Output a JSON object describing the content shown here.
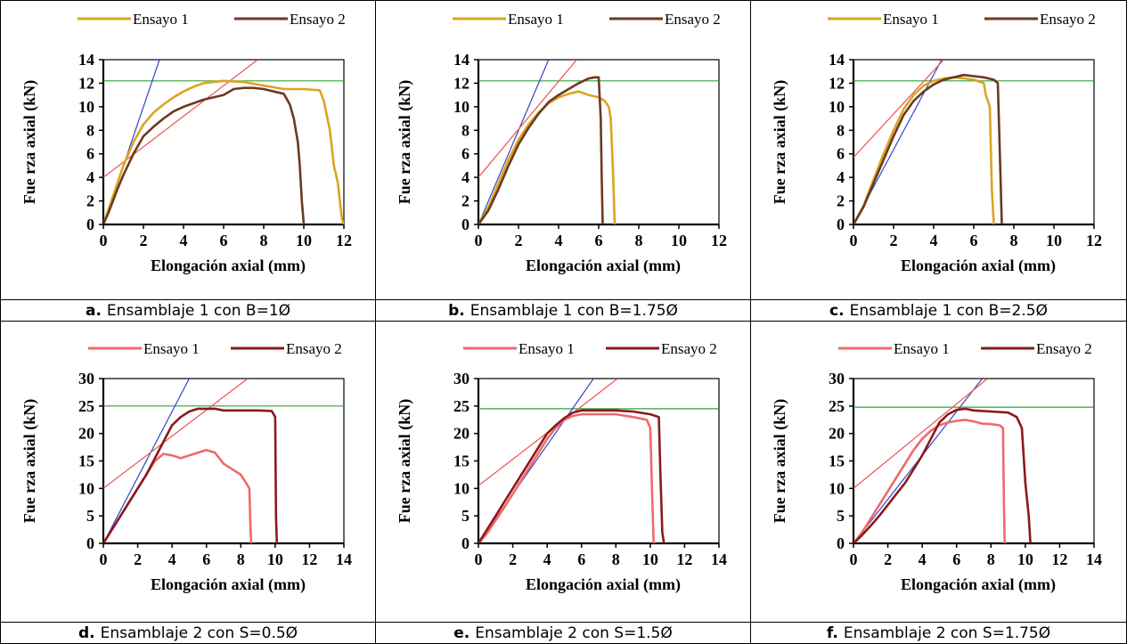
{
  "colors": {
    "ensayo1_row1": "#DAA520",
    "ensayo2_row1": "#6B3A1F",
    "ensayo1_row2": "#F06A6A",
    "ensayo2_row2": "#8B1A1A",
    "tangent": "#3344CC",
    "secant": "#F05050",
    "yield": "#33A033"
  },
  "panels": [
    {
      "caption_letter": "a.",
      "caption_text": "Ensamblaje 1 con B=1Ø",
      "chart_data": {
        "type": "line",
        "xlabel": "Elongación axial (mm)",
        "ylabel": "Fue rza axial (kN)",
        "xlim": [
          0,
          12
        ],
        "ylim": [
          0,
          14
        ],
        "xticks": [
          "0",
          "2",
          "4",
          "6",
          "8",
          "10",
          "12"
        ],
        "yticks": [
          "0",
          "2",
          "4",
          "6",
          "8",
          "10",
          "12",
          "14"
        ],
        "legend": "top",
        "series": [
          {
            "name": "Ensayo 1",
            "x": [
              0,
              0.3,
              0.7,
              1.0,
              1.5,
              2.0,
              2.5,
              3.0,
              3.5,
              4.0,
              4.5,
              5.0,
              5.5,
              6.0,
              7.0,
              8.0,
              9.0,
              10.0,
              10.8,
              11.0,
              11.3,
              11.5,
              11.7,
              11.8,
              11.9,
              12.0
            ],
            "y": [
              0,
              1.5,
              3.5,
              5,
              7,
              8.5,
              9.5,
              10.2,
              10.8,
              11.3,
              11.7,
              12.0,
              12.1,
              12.2,
              12.1,
              11.8,
              11.5,
              11.5,
              11.4,
              10.5,
              8,
              5,
              3.5,
              2,
              0.5,
              0
            ]
          },
          {
            "name": "Ensayo 2",
            "x": [
              0,
              0.3,
              0.7,
              1.0,
              1.5,
              2.0,
              2.5,
              3.0,
              3.5,
              4.0,
              5.0,
              6.0,
              6.5,
              7.0,
              7.5,
              8.0,
              8.5,
              9.0,
              9.3,
              9.5,
              9.7,
              9.8,
              9.9,
              10.0
            ],
            "y": [
              0,
              1.2,
              3,
              4.2,
              6,
              7.5,
              8.3,
              9.0,
              9.6,
              10.0,
              10.6,
              11.0,
              11.5,
              11.6,
              11.6,
              11.5,
              11.3,
              11.1,
              10.2,
              9,
              7,
              5,
              2,
              0
            ]
          },
          {
            "name": "tangent",
            "x": [
              0,
              2.8
            ],
            "y": [
              0,
              14
            ]
          },
          {
            "name": "secant",
            "x": [
              0,
              7.7
            ],
            "y": [
              4,
              14
            ]
          },
          {
            "name": "yield",
            "x": [
              0,
              12
            ],
            "y": [
              12.2,
              12.2
            ]
          }
        ]
      }
    },
    {
      "caption_letter": "b.",
      "caption_text": "Ensamblaje 1 con B=1.75Ø",
      "chart_data": {
        "type": "line",
        "xlabel": "Elongación axial (mm)",
        "ylabel": "Fue rza axial (kN)",
        "xlim": [
          0,
          12
        ],
        "ylim": [
          0,
          14
        ],
        "xticks": [
          "0",
          "2",
          "4",
          "6",
          "8",
          "10",
          "12"
        ],
        "yticks": [
          "0",
          "2",
          "4",
          "6",
          "8",
          "10",
          "12",
          "14"
        ],
        "legend": "top",
        "series": [
          {
            "name": "Ensayo 1",
            "x": [
              0,
              0.5,
              1.0,
              1.5,
              2.0,
              2.5,
              3.0,
              3.5,
              4.0,
              4.5,
              5.0,
              5.5,
              6.0,
              6.3,
              6.5,
              6.6,
              6.7,
              6.8
            ],
            "y": [
              0,
              1.5,
              3.5,
              5.5,
              7.2,
              8.5,
              9.5,
              10.3,
              10.8,
              11.1,
              11.3,
              11.0,
              10.8,
              10.5,
              10.0,
              9,
              5,
              0
            ]
          },
          {
            "name": "Ensayo 2",
            "x": [
              0,
              0.5,
              1.0,
              1.5,
              2.0,
              2.5,
              3.0,
              3.5,
              4.0,
              4.5,
              5.0,
              5.5,
              5.8,
              6.0,
              6.1,
              6.15,
              6.2
            ],
            "y": [
              0,
              1.2,
              3,
              5,
              6.8,
              8.2,
              9.4,
              10.4,
              11.0,
              11.5,
              12.0,
              12.4,
              12.5,
              12.5,
              9,
              4,
              0
            ]
          },
          {
            "name": "tangent",
            "x": [
              0,
              3.5
            ],
            "y": [
              0,
              14
            ]
          },
          {
            "name": "secant",
            "x": [
              0,
              4.9
            ],
            "y": [
              4,
              14
            ]
          },
          {
            "name": "yield",
            "x": [
              0,
              12
            ],
            "y": [
              12.2,
              12.2
            ]
          }
        ]
      }
    },
    {
      "caption_letter": "c.",
      "caption_text": "Ensamblaje 1 con B=2.5Ø",
      "chart_data": {
        "type": "line",
        "xlabel": "Elongación axial (mm)",
        "ylabel": "Fue rza axial (kN)",
        "xlim": [
          0,
          12
        ],
        "ylim": [
          0,
          14
        ],
        "xticks": [
          "0",
          "2",
          "4",
          "6",
          "8",
          "10",
          "12"
        ],
        "yticks": [
          "0",
          "2",
          "4",
          "6",
          "8",
          "10",
          "12",
          "14"
        ],
        "legend": "top",
        "series": [
          {
            "name": "Ensayo 1",
            "x": [
              0,
              0.5,
              1.0,
              1.5,
              2.0,
              2.5,
              3.0,
              3.5,
              4.0,
              4.5,
              5.0,
              5.5,
              6.0,
              6.5,
              6.6,
              6.8,
              6.9,
              7.0
            ],
            "y": [
              0,
              1.6,
              3.8,
              6,
              8,
              9.8,
              11,
              11.8,
              12.2,
              12.4,
              12.5,
              12.4,
              12.3,
              12.0,
              11,
              10,
              3,
              0
            ]
          },
          {
            "name": "Ensayo 2",
            "x": [
              0,
              0.5,
              1.0,
              1.5,
              2.0,
              2.5,
              3.0,
              3.5,
              4.0,
              4.5,
              5.0,
              5.5,
              6.0,
              6.5,
              7.0,
              7.2,
              7.3,
              7.4
            ],
            "y": [
              0,
              1.5,
              3.5,
              5.5,
              7.5,
              9.3,
              10.5,
              11.3,
              11.9,
              12.3,
              12.5,
              12.7,
              12.6,
              12.5,
              12.3,
              12.0,
              6,
              0
            ]
          },
          {
            "name": "tangent",
            "x": [
              0,
              4.4
            ],
            "y": [
              0,
              14
            ]
          },
          {
            "name": "secant",
            "x": [
              0,
              4.5
            ],
            "y": [
              5.7,
              14
            ]
          },
          {
            "name": "yield",
            "x": [
              0,
              12
            ],
            "y": [
              12.2,
              12.2
            ]
          }
        ]
      }
    },
    {
      "caption_letter": "d.",
      "caption_text": "Ensamblaje 2 con S=0.5Ø",
      "chart_data": {
        "type": "line",
        "xlabel": "Elongación axial (mm)",
        "ylabel": "Fue rza axial (kN)",
        "xlim": [
          0,
          14
        ],
        "ylim": [
          0,
          30
        ],
        "xticks": [
          "0",
          "2",
          "4",
          "6",
          "8",
          "10",
          "12",
          "14"
        ],
        "yticks": [
          "0",
          "5",
          "10",
          "15",
          "20",
          "25",
          "30"
        ],
        "legend": "top",
        "series": [
          {
            "name": "Ensayo 1",
            "x": [
              0,
              0.5,
              1.0,
              1.5,
              2.0,
              2.5,
              3.0,
              3.5,
              4.0,
              4.5,
              5.0,
              5.5,
              6.0,
              6.5,
              7.0,
              7.5,
              8.0,
              8.3,
              8.5,
              8.55,
              8.6
            ],
            "y": [
              0,
              2.5,
              5,
              7.5,
              10,
              12.5,
              15,
              16.3,
              16,
              15.5,
              16,
              16.5,
              17,
              16.5,
              14.5,
              13.5,
              12.5,
              11,
              10,
              4,
              0
            ]
          },
          {
            "name": "Ensayo 2",
            "x": [
              0,
              0.5,
              1.0,
              1.5,
              2.0,
              2.5,
              3.0,
              3.5,
              4.0,
              4.5,
              5.0,
              5.5,
              6.0,
              6.5,
              7.0,
              8.0,
              9.0,
              9.8,
              10.0,
              10.05,
              10.1
            ],
            "y": [
              0,
              2.5,
              5,
              7.5,
              10,
              12.5,
              15.5,
              18.5,
              21.5,
              23,
              24,
              24.5,
              24.5,
              24.5,
              24.2,
              24.2,
              24.2,
              24.1,
              23,
              5,
              0
            ]
          },
          {
            "name": "tangent",
            "x": [
              0,
              5.0
            ],
            "y": [
              0,
              30
            ]
          },
          {
            "name": "secant",
            "x": [
              0,
              8.4
            ],
            "y": [
              10,
              30
            ]
          },
          {
            "name": "yield",
            "x": [
              0,
              14
            ],
            "y": [
              25,
              25
            ]
          }
        ]
      }
    },
    {
      "caption_letter": "e.",
      "caption_text": "Ensamblaje 2 con S=1.5Ø",
      "chart_data": {
        "type": "line",
        "xlabel": "Elongación axial (mm)",
        "ylabel": "Fue rza axial (kN)",
        "xlim": [
          0,
          14
        ],
        "ylim": [
          0,
          30
        ],
        "xticks": [
          "0",
          "2",
          "4",
          "6",
          "8",
          "10",
          "12",
          "14"
        ],
        "yticks": [
          "0",
          "5",
          "10",
          "15",
          "20",
          "25",
          "30"
        ],
        "legend": "top",
        "series": [
          {
            "name": "Ensayo 1",
            "x": [
              0,
              0.5,
              1.0,
              1.5,
              2.0,
              2.5,
              3.0,
              3.5,
              4.0,
              4.5,
              5.0,
              5.5,
              6.0,
              7.0,
              8.0,
              9.0,
              9.8,
              10.0,
              10.1,
              10.2
            ],
            "y": [
              0,
              1.8,
              4.2,
              6.5,
              9,
              11.5,
              14,
              16.5,
              19,
              21,
              22.5,
              23.2,
              23.5,
              23.5,
              23.5,
              23.0,
              22.5,
              21,
              10,
              0
            ]
          },
          {
            "name": "Ensayo 2",
            "x": [
              0,
              0.5,
              1.0,
              1.5,
              2.0,
              2.5,
              3.0,
              3.5,
              4.0,
              4.5,
              5.0,
              5.5,
              6.0,
              7.0,
              8.0,
              9.0,
              10.0,
              10.5,
              10.6,
              10.7,
              10.8
            ],
            "y": [
              0,
              2.5,
              5,
              7.5,
              10,
              12.5,
              15,
              17.5,
              20,
              21.5,
              22.8,
              23.8,
              24.2,
              24.2,
              24.2,
              24,
              23.5,
              23,
              12,
              2,
              0
            ]
          },
          {
            "name": "tangent",
            "x": [
              0,
              6.7
            ],
            "y": [
              0,
              30
            ]
          },
          {
            "name": "secant",
            "x": [
              0,
              8.1
            ],
            "y": [
              10.5,
              30
            ]
          },
          {
            "name": "yield",
            "x": [
              0,
              14
            ],
            "y": [
              24.5,
              24.5
            ]
          }
        ]
      }
    },
    {
      "caption_letter": "f.",
      "caption_text": "Ensamblaje 2 con S=1.75Ø",
      "chart_data": {
        "type": "line",
        "xlabel": "Elongación axial (mm)",
        "ylabel": "Fue rza axial (kN)",
        "xlim": [
          0,
          14
        ],
        "ylim": [
          0,
          30
        ],
        "xticks": [
          "0",
          "2",
          "4",
          "6",
          "8",
          "10",
          "12",
          "14"
        ],
        "yticks": [
          "0",
          "5",
          "10",
          "15",
          "20",
          "25",
          "30"
        ],
        "legend": "top",
        "series": [
          {
            "name": "Ensayo 1",
            "x": [
              0,
              0.5,
              1.0,
              1.5,
              2.0,
              2.5,
              3.0,
              3.5,
              4.0,
              4.5,
              5.0,
              5.5,
              6.0,
              6.5,
              7.0,
              7.5,
              8.0,
              8.5,
              8.7,
              8.75,
              8.8
            ],
            "y": [
              0,
              2,
              4.5,
              7,
              9.5,
              12,
              14.5,
              17,
              19,
              20.5,
              21.5,
              22,
              22.3,
              22.5,
              22.2,
              21.8,
              21.7,
              21.5,
              21,
              8,
              0
            ]
          },
          {
            "name": "Ensayo 2",
            "x": [
              0,
              0.5,
              1.0,
              1.5,
              2.0,
              2.5,
              3.0,
              3.5,
              4.0,
              4.5,
              5.0,
              5.5,
              6.0,
              6.5,
              7.0,
              8.0,
              9.0,
              9.5,
              9.8,
              10.0,
              10.2,
              10.3
            ],
            "y": [
              0,
              1.5,
              3.2,
              5,
              7,
              9,
              11,
              13.5,
              16,
              19,
              22,
              23.5,
              24.3,
              24.5,
              24.2,
              24,
              23.8,
              23,
              21,
              11,
              5,
              0
            ]
          },
          {
            "name": "tangent",
            "x": [
              0,
              7.5
            ],
            "y": [
              0,
              30
            ]
          },
          {
            "name": "secant",
            "x": [
              0,
              7.8
            ],
            "y": [
              10,
              30
            ]
          },
          {
            "name": "yield",
            "x": [
              0,
              14
            ],
            "y": [
              24.8,
              24.8
            ]
          }
        ]
      }
    }
  ]
}
